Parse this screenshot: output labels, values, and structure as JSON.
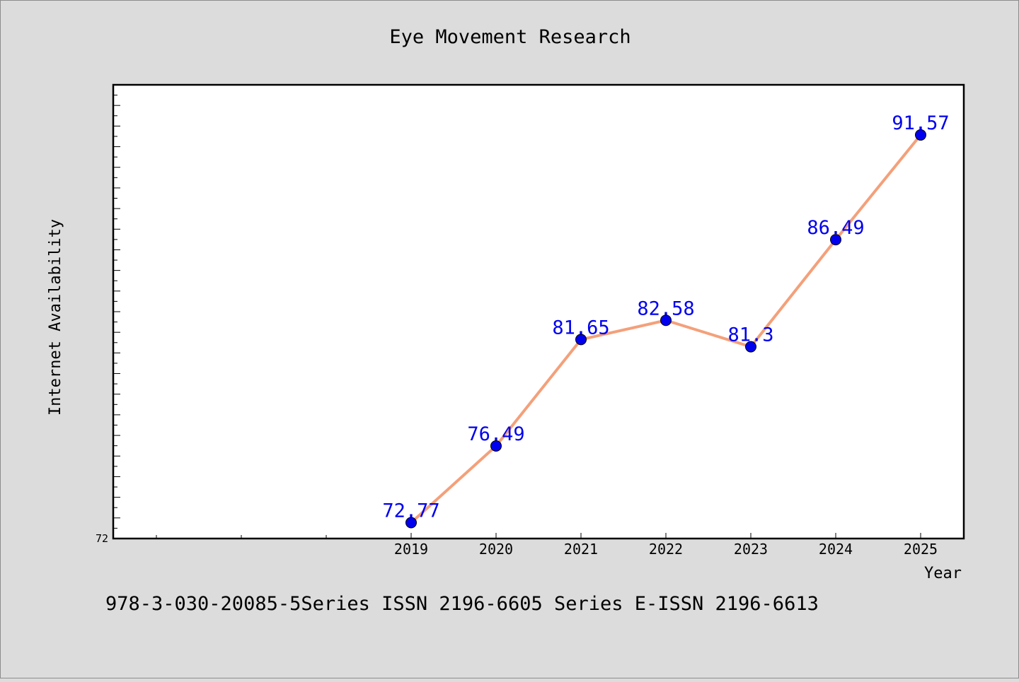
{
  "chart_data": {
    "type": "line",
    "title": "Eye Movement Research",
    "xlabel": "Year",
    "ylabel": "Internet Availability",
    "categories": [
      "2019",
      "2020",
      "2021",
      "2022",
      "2023",
      "2024",
      "2025"
    ],
    "series": [
      {
        "values": [
          72.77,
          76.49,
          81.65,
          82.58,
          81.3,
          86.49,
          91.57
        ]
      }
    ],
    "data_labels": [
      "72.77",
      "76.49",
      "81.65",
      "82.58",
      "81.3",
      "86.49",
      "91.57"
    ],
    "ytick_labels": [
      "72"
    ],
    "ylim": [
      72,
      94
    ],
    "grid": false,
    "colors": {
      "line": "#f4a07a",
      "marker": "#0000ee",
      "label": "#0000ee"
    }
  },
  "footer_text": "978-3-030-20085-5Series ISSN 2196-6605 Series E-ISSN 2196-6613"
}
